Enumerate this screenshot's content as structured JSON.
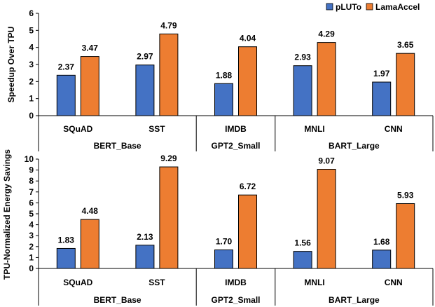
{
  "colors": {
    "pluto": "#4472C4",
    "lamaaccel": "#ED7D31"
  },
  "legend": [
    "pLUTo",
    "LamaAccel"
  ],
  "chart_data": [
    {
      "type": "bar",
      "ylabel": "Speedup Over TPU",
      "ylim": [
        0,
        6
      ],
      "yticks": [
        "0",
        "1",
        "2",
        "3",
        "4",
        "5",
        "6"
      ],
      "categories": [
        "SQuAD",
        "SST",
        "IMDB",
        "MNLI",
        "CNN"
      ],
      "groups": [
        {
          "label": "BERT_Base",
          "members": [
            "SQuAD",
            "SST"
          ]
        },
        {
          "label": "GPT2_Small",
          "members": [
            "IMDB"
          ]
        },
        {
          "label": "BART_Large",
          "members": [
            "MNLI",
            "CNN"
          ]
        }
      ],
      "series": [
        {
          "name": "pLUTo",
          "values": [
            2.37,
            2.97,
            1.88,
            2.93,
            1.97
          ],
          "labels": [
            "2.37",
            "2.97",
            "1.88",
            "2.93",
            "1.97"
          ]
        },
        {
          "name": "LamaAccel",
          "values": [
            3.47,
            4.79,
            4.04,
            4.29,
            3.65
          ],
          "labels": [
            "3.47",
            "4.79",
            "4.04",
            "4.29",
            "3.65"
          ]
        }
      ]
    },
    {
      "type": "bar",
      "ylabel": "TPU-Normalized Energy Savings",
      "ylim": [
        0,
        10
      ],
      "yticks": [
        "0",
        "1",
        "2",
        "3",
        "4",
        "5",
        "6",
        "7",
        "8",
        "9",
        "10"
      ],
      "categories": [
        "SQuAD",
        "SST",
        "IMDB",
        "MNLI",
        "CNN"
      ],
      "groups": [
        {
          "label": "BERT_Base",
          "members": [
            "SQuAD",
            "SST"
          ]
        },
        {
          "label": "GPT2_Small",
          "members": [
            "IMDB"
          ]
        },
        {
          "label": "BART_Large",
          "members": [
            "MNLI",
            "CNN"
          ]
        }
      ],
      "series": [
        {
          "name": "pLUTo",
          "values": [
            1.83,
            2.13,
            1.7,
            1.56,
            1.68
          ],
          "labels": [
            "1.83",
            "2.13",
            "1.70",
            "1.56",
            "1.68"
          ]
        },
        {
          "name": "LamaAccel",
          "values": [
            4.48,
            9.29,
            6.72,
            9.07,
            5.93
          ],
          "labels": [
            "4.48",
            "9.29",
            "6.72",
            "9.07",
            "5.93"
          ]
        }
      ]
    }
  ]
}
